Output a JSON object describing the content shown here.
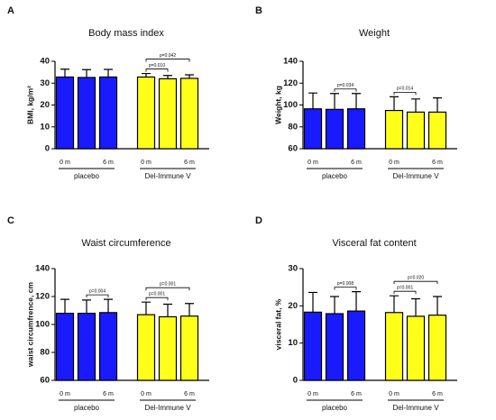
{
  "chart_data": [
    {
      "type": "bar",
      "panel_label": "A",
      "title": "Body mass index",
      "y_label": "BMI, kg/m²",
      "ylim": [
        0,
        40
      ],
      "yticks": [
        0,
        10,
        20,
        30,
        40
      ],
      "series": [
        {
          "name": "placebo",
          "color": "#1a1aff",
          "categories": [
            "0 m",
            null,
            "6 m"
          ],
          "values": [
            32.8,
            32.6,
            32.8
          ],
          "errors": [
            3.6,
            3.6,
            3.5
          ]
        },
        {
          "name": "Del-Immune V",
          "color": "#ffff1a",
          "categories": [
            "0 m",
            null,
            "6 m"
          ],
          "values": [
            32.8,
            32.0,
            32.2
          ],
          "errors": [
            1.6,
            1.5,
            1.6
          ]
        }
      ],
      "annotations": [
        {
          "text": "p=0.010",
          "series": 1,
          "bars": [
            0,
            1
          ]
        },
        {
          "text": "p=0.042",
          "series": 1,
          "bars": [
            0,
            2
          ]
        }
      ]
    },
    {
      "type": "bar",
      "panel_label": "B",
      "title": "Weight",
      "y_label": "Weight, kg",
      "ylim": [
        60,
        140
      ],
      "yticks": [
        60,
        80,
        100,
        120,
        140
      ],
      "series": [
        {
          "name": "placebo",
          "color": "#1a1aff",
          "categories": [
            "0 m",
            null,
            "6 m"
          ],
          "values": [
            96.5,
            96,
            96.5
          ],
          "errors": [
            14.5,
            14.5,
            14
          ]
        },
        {
          "name": "Del-Immune V",
          "color": "#ffff1a",
          "categories": [
            "0 m",
            null,
            "6 m"
          ],
          "values": [
            95,
            93.5,
            93.5
          ],
          "errors": [
            12.5,
            12,
            13
          ]
        }
      ],
      "annotations": [
        {
          "text": "p=0.034",
          "series": 0,
          "bars": [
            1,
            2
          ]
        },
        {
          "text": "p=0.014",
          "series": 1,
          "bars": [
            0,
            1
          ]
        }
      ]
    },
    {
      "type": "bar",
      "panel_label": "C",
      "title": "Waist circumference",
      "y_label": "waist circumfrence, cm",
      "ylim": [
        60,
        140
      ],
      "yticks": [
        60,
        80,
        100,
        120,
        140
      ],
      "series": [
        {
          "name": "placebo",
          "color": "#1a1aff",
          "categories": [
            "0 m",
            null,
            "6 m"
          ],
          "values": [
            108,
            108,
            108.5
          ],
          "errors": [
            10,
            9.5,
            9.5
          ]
        },
        {
          "name": "Del-Immune V",
          "color": "#ffff1a",
          "categories": [
            "0 m",
            null,
            "6 m"
          ],
          "values": [
            107,
            105.5,
            106
          ],
          "errors": [
            9,
            9,
            9
          ]
        }
      ],
      "annotations": [
        {
          "text": "p=0.004",
          "series": 0,
          "bars": [
            1,
            2
          ]
        },
        {
          "text": "p=0.001",
          "series": 1,
          "bars": [
            0,
            1
          ]
        },
        {
          "text": "p=0.001",
          "series": 1,
          "bars": [
            0,
            2
          ]
        }
      ]
    },
    {
      "type": "bar",
      "panel_label": "D",
      "title": "Visceral fat content",
      "y_label": "visceral fat, %",
      "ylim": [
        0,
        30
      ],
      "yticks": [
        0,
        10,
        20,
        30
      ],
      "series": [
        {
          "name": "placebo",
          "color": "#1a1aff",
          "categories": [
            "0 m",
            null,
            "6 m"
          ],
          "values": [
            18.3,
            17.9,
            18.6
          ],
          "errors": [
            5.3,
            4.6,
            5.2
          ]
        },
        {
          "name": "Del-Immune V",
          "color": "#ffff1a",
          "categories": [
            "0 m",
            null,
            "6 m"
          ],
          "values": [
            18.2,
            17.2,
            17.5
          ],
          "errors": [
            4.5,
            4.7,
            5.0
          ]
        }
      ],
      "annotations": [
        {
          "text": "p=0.008",
          "series": 0,
          "bars": [
            1,
            2
          ]
        },
        {
          "text": "p=0.001",
          "series": 1,
          "bars": [
            0,
            1
          ]
        },
        {
          "text": "p=0.020",
          "series": 1,
          "bars": [
            0,
            2
          ]
        }
      ]
    }
  ]
}
